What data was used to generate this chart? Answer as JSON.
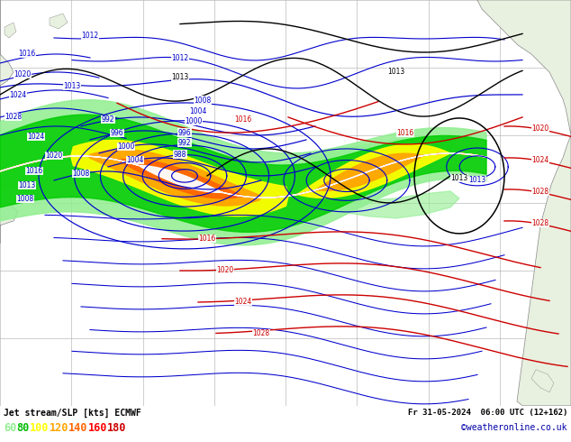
{
  "title_left": "Jet stream/SLP [kts] ECMWF",
  "title_right": "Fr 31-05-2024  06:00 UTC (12+162)",
  "credit": "©weatheronline.co.uk",
  "legend_values": [
    60,
    80,
    100,
    120,
    140,
    160,
    180
  ],
  "legend_colors": [
    "#90ee90",
    "#00bb00",
    "#ffff00",
    "#ffa500",
    "#ff6600",
    "#ff0000",
    "#cc0000"
  ],
  "background_color": "#ffffff",
  "figure_width": 6.34,
  "figure_height": 4.9,
  "dpi": 100,
  "map_bg": "#ffffff",
  "ocean_color": "#ffffff",
  "grid_color": "#aaaaaa",
  "blue_contour": "#0000cc",
  "red_contour": "#cc0000",
  "black_contour": "#000000",
  "land_color": "#e8f0e0",
  "bottom_bar": "#d0d0d0"
}
